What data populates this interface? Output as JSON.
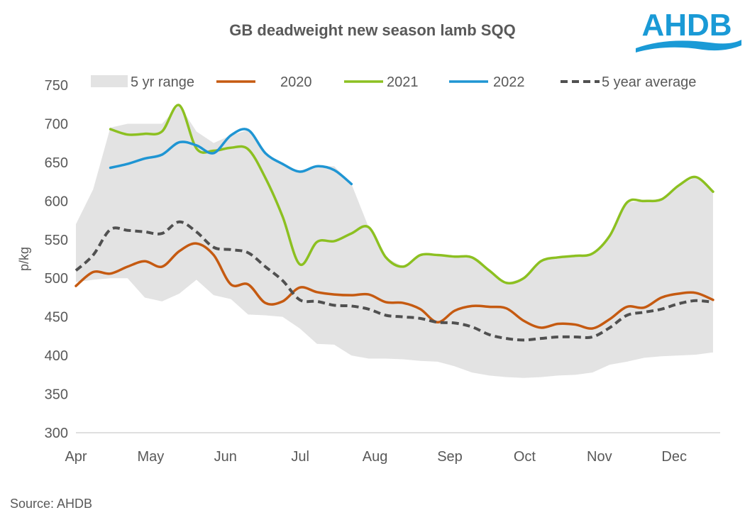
{
  "logo_text": "AHDB",
  "source": "Source: AHDB",
  "chart_data": {
    "type": "line",
    "title": "GB deadweight new season lamb SQQ",
    "xlabel": "",
    "ylabel": "p/kg",
    "ylim": [
      300,
      750
    ],
    "yticks": [
      300,
      350,
      400,
      450,
      500,
      550,
      600,
      650,
      700,
      750
    ],
    "xtick_labels": [
      "Apr",
      "May",
      "Jun",
      "Jul",
      "Aug",
      "Sep",
      "Oct",
      "Nov",
      "Dec"
    ],
    "grid": false,
    "legend_position": "top",
    "x": [
      "Apr 1",
      "Apr 8",
      "Apr 15",
      "Apr 22",
      "Apr 29",
      "May 6",
      "May 13",
      "May 20",
      "May 27",
      "Jun 3",
      "Jun 10",
      "Jun 17",
      "Jun 24",
      "Jul 1",
      "Jul 8",
      "Jul 15",
      "Jul 22",
      "Jul 29",
      "Aug 5",
      "Aug 12",
      "Aug 19",
      "Aug 26",
      "Sep 2",
      "Sep 9",
      "Sep 16",
      "Sep 23",
      "Sep 30",
      "Oct 7",
      "Oct 14",
      "Oct 21",
      "Oct 28",
      "Nov 4",
      "Nov 11",
      "Nov 18",
      "Nov 25",
      "Dec 2",
      "Dec 9",
      "Dec 16"
    ],
    "range": {
      "name": "5 yr range",
      "color": "#e3e3e3",
      "lower": [
        495,
        498,
        500,
        500,
        475,
        470,
        480,
        498,
        478,
        473,
        453,
        452,
        450,
        435,
        415,
        414,
        400,
        396,
        396,
        395,
        393,
        392,
        386,
        378,
        374,
        372,
        371,
        372,
        374,
        375,
        378,
        388,
        392,
        397,
        399,
        400,
        401,
        404
      ],
      "upper": [
        570,
        615,
        695,
        700,
        700,
        700,
        724,
        690,
        675,
        685,
        692,
        662,
        648,
        638,
        645,
        645,
        622,
        566,
        527,
        515,
        530,
        530,
        528,
        527,
        510,
        494,
        500,
        522,
        527,
        529,
        532,
        555,
        598,
        600,
        602,
        620,
        631,
        612
      ]
    },
    "series": [
      {
        "name": "2020",
        "color": "#c55a11",
        "dash": false,
        "values": [
          490,
          508,
          506,
          515,
          522,
          515,
          535,
          545,
          530,
          492,
          492,
          468,
          470,
          488,
          482,
          479,
          478,
          479,
          469,
          468,
          460,
          443,
          458,
          464,
          463,
          461,
          445,
          436,
          441,
          440,
          435,
          447,
          463,
          462,
          475,
          480,
          481,
          472
        ]
      },
      {
        "name": "2021",
        "color": "#8cc021",
        "dash": false,
        "values": [
          null,
          null,
          693,
          686,
          687,
          690,
          724,
          668,
          665,
          669,
          667,
          630,
          580,
          518,
          547,
          548,
          558,
          566,
          527,
          515,
          530,
          530,
          528,
          527,
          510,
          494,
          500,
          522,
          527,
          529,
          532,
          555,
          598,
          600,
          602,
          620,
          631,
          612
        ]
      },
      {
        "name": "2022",
        "color": "#1f95d3",
        "dash": false,
        "values": [
          null,
          null,
          643,
          648,
          655,
          660,
          676,
          672,
          662,
          685,
          692,
          662,
          648,
          638,
          645,
          640,
          622,
          null,
          null,
          null,
          null,
          null,
          null,
          null,
          null,
          null,
          null,
          null,
          null,
          null,
          null,
          null,
          null,
          null,
          null,
          null,
          null,
          null
        ]
      },
      {
        "name": "5 year average",
        "color": "#505050",
        "dash": true,
        "values": [
          510,
          530,
          563,
          562,
          560,
          558,
          573,
          560,
          540,
          537,
          533,
          515,
          497,
          472,
          470,
          465,
          464,
          460,
          452,
          450,
          448,
          443,
          442,
          437,
          427,
          422,
          420,
          422,
          424,
          424,
          424,
          436,
          452,
          456,
          460,
          467,
          471,
          469
        ]
      }
    ]
  }
}
